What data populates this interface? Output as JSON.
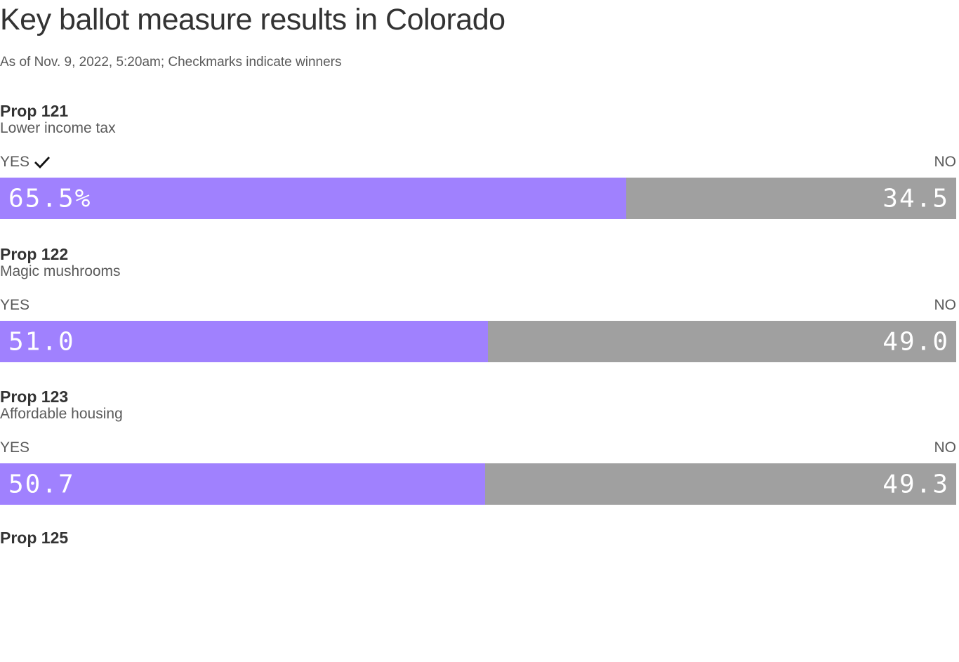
{
  "chart_data": {
    "type": "bar",
    "title": "Key ballot measure results in Colorado",
    "subtitle": "As of Nov. 9, 2022, 5:20am; Checkmarks indicate winners",
    "yes_label": "YES",
    "no_label": "NO",
    "colors": {
      "yes": "#a081fe",
      "no": "#a0a0a0"
    },
    "measures": [
      {
        "name": "Prop 121",
        "description": "Lower income tax",
        "yes": 65.5,
        "no": 34.5,
        "yes_text": "65.5%",
        "no_text": "34.5",
        "winner": "yes"
      },
      {
        "name": "Prop 122",
        "description": "Magic mushrooms",
        "yes": 51.0,
        "no": 49.0,
        "yes_text": "51.0",
        "no_text": "49.0",
        "winner": ""
      },
      {
        "name": "Prop 123",
        "description": "Affordable housing",
        "yes": 50.7,
        "no": 49.3,
        "yes_text": "50.7",
        "no_text": "49.3",
        "winner": ""
      },
      {
        "name": "Prop 125",
        "description": "",
        "yes": null,
        "no": null,
        "yes_text": "",
        "no_text": "",
        "winner": ""
      }
    ]
  }
}
